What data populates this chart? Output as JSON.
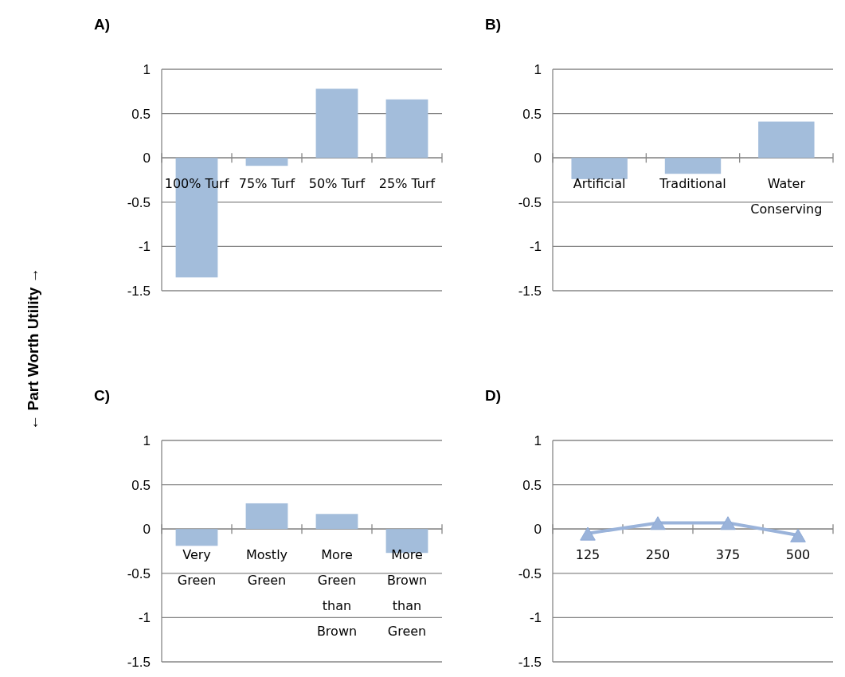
{
  "chart_data": [
    {
      "type": "bar",
      "title": "A)",
      "ylabel": "← Part Worth Utility →",
      "categories": [
        "100% Turf",
        "75% Turf",
        "50% Turf",
        "25% Turf"
      ],
      "values": [
        -1.35,
        -0.09,
        0.78,
        0.66
      ],
      "color": "#a3bddb",
      "ylim": [
        -1.5,
        1
      ],
      "yticks": [
        -1.5,
        -1,
        -0.5,
        0,
        0.5,
        1
      ],
      "grid": "y"
    },
    {
      "type": "bar",
      "title": "B)",
      "categories": [
        "Artificial",
        "Traditional",
        "Water Conserving"
      ],
      "values": [
        -0.24,
        -0.18,
        0.41
      ],
      "color": "#a3bddb",
      "ylim": [
        -1.5,
        1
      ],
      "yticks": [
        -1.5,
        -1,
        -0.5,
        0,
        0.5,
        1
      ],
      "grid": "y"
    },
    {
      "type": "bar",
      "title": "C)",
      "categories": [
        "Very Green",
        "Mostly Green",
        "More Green than Brown",
        "More Brown than Green"
      ],
      "values": [
        -0.19,
        0.29,
        0.17,
        -0.27
      ],
      "color": "#a3bddb",
      "ylim": [
        -1.5,
        1
      ],
      "yticks": [
        -1.5,
        -1,
        -0.5,
        0,
        0.5,
        1
      ],
      "grid": "y"
    },
    {
      "type": "line",
      "title": "D)",
      "categories": [
        "125",
        "250",
        "375",
        "500"
      ],
      "values": [
        -0.05,
        0.07,
        0.07,
        -0.07
      ],
      "color": "#9ab3da",
      "marker": "triangle",
      "ylim": [
        -1.5,
        1
      ],
      "yticks": [
        -1.5,
        -1,
        -0.5,
        0,
        0.5,
        1
      ],
      "grid": "y"
    }
  ]
}
